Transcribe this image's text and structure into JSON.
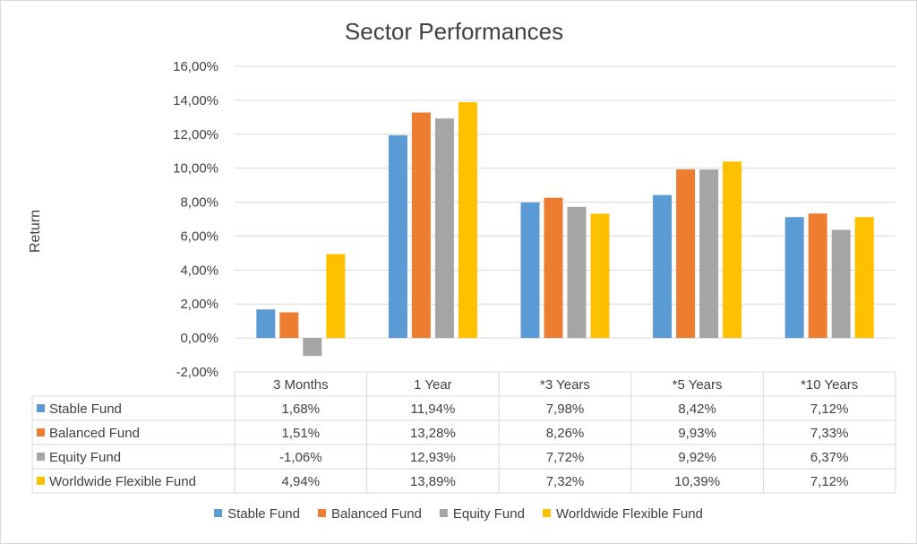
{
  "chart_data": {
    "type": "bar",
    "title": "Sector Performances",
    "ylabel": "Return",
    "xlabel": "",
    "ylim": [
      -0.02,
      0.16
    ],
    "ytick_step": 0.02,
    "y_ticks": [
      "16,00%",
      "14,00%",
      "12,00%",
      "10,00%",
      "8,00%",
      "6,00%",
      "4,00%",
      "2,00%",
      "0,00%",
      "-2,00%"
    ],
    "categories": [
      "3 Months",
      "1 Year",
      "*3 Years",
      "*5 Years",
      "*10 Years"
    ],
    "series": [
      {
        "name": "Stable Fund",
        "color": "#5b9bd5",
        "values": [
          0.0168,
          0.1194,
          0.0798,
          0.0842,
          0.0712
        ],
        "labels": [
          "1,68%",
          "11,94%",
          "7,98%",
          "8,42%",
          "7,12%"
        ]
      },
      {
        "name": "Balanced Fund",
        "color": "#ed7d31",
        "values": [
          0.0151,
          0.1328,
          0.0826,
          0.0993,
          0.0733
        ],
        "labels": [
          "1,51%",
          "13,28%",
          "8,26%",
          "9,93%",
          "7,33%"
        ]
      },
      {
        "name": "Equity Fund",
        "color": "#a5a5a5",
        "values": [
          -0.0106,
          0.1293,
          0.0772,
          0.0992,
          0.0637
        ],
        "labels": [
          "-1,06%",
          "12,93%",
          "7,72%",
          "9,92%",
          "6,37%"
        ]
      },
      {
        "name": "Worldwide Flexible Fund",
        "color": "#ffc000",
        "values": [
          0.0494,
          0.1389,
          0.0732,
          0.1039,
          0.0712
        ],
        "labels": [
          "4,94%",
          "13,89%",
          "7,32%",
          "10,39%",
          "7,12%"
        ]
      }
    ],
    "grid": true,
    "legend_position": "bottom",
    "data_table": true
  }
}
